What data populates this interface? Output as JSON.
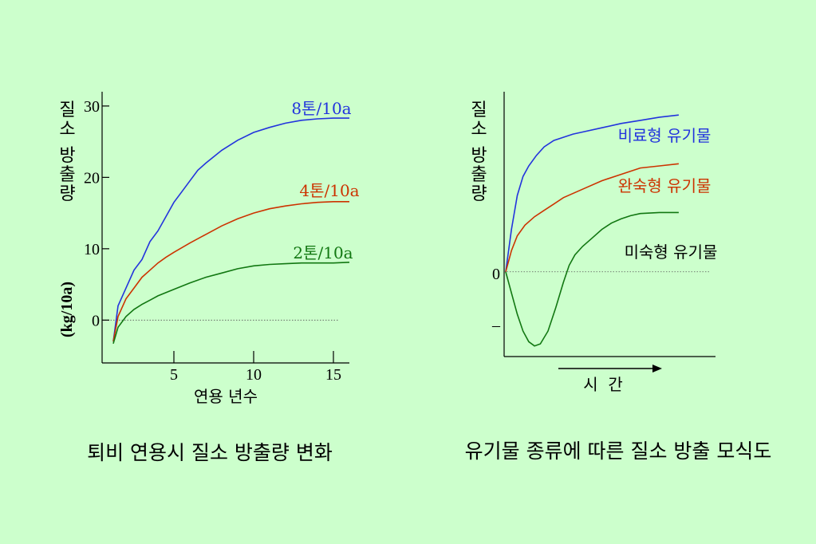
{
  "chart_data": [
    {
      "type": "line",
      "title": "퇴비 연용시 질소 방출량 변화",
      "xlabel": "연용 년수",
      "ylabel_main": "질소 방출량",
      "ylabel_unit": "(kg/10a)",
      "xlim": [
        0.5,
        16
      ],
      "ylim": [
        -6,
        32
      ],
      "xticks": [
        5,
        10,
        15
      ],
      "yticks": [
        0,
        10,
        20,
        30
      ],
      "zero_line": true,
      "series": [
        {
          "name": "8톤/10a",
          "color": "#2233dd",
          "x": [
            1.2,
            1.5,
            2,
            2.5,
            3,
            3.5,
            4,
            4.5,
            5,
            5.5,
            6,
            6.5,
            7,
            8,
            9,
            10,
            11,
            12,
            13,
            14,
            15,
            16
          ],
          "y": [
            -3,
            2,
            4.5,
            7,
            8.5,
            11,
            12.5,
            14.5,
            16.5,
            18,
            19.5,
            21,
            22,
            23.8,
            25.2,
            26.3,
            27,
            27.6,
            28,
            28.2,
            28.3,
            28.3
          ]
        },
        {
          "name": "4톤/10a",
          "color": "#cc3300",
          "x": [
            1.2,
            1.5,
            2,
            2.5,
            3,
            3.5,
            4,
            4.5,
            5,
            6,
            7,
            8,
            9,
            10,
            11,
            12,
            13,
            14,
            15,
            16
          ],
          "y": [
            -3,
            0.5,
            3,
            4.5,
            6,
            7,
            8,
            8.8,
            9.5,
            10.8,
            12,
            13.2,
            14.2,
            15,
            15.6,
            16,
            16.3,
            16.5,
            16.6,
            16.6
          ]
        },
        {
          "name": "2톤/10a",
          "color": "#117711",
          "x": [
            1.2,
            1.5,
            2,
            2.5,
            3,
            3.5,
            4,
            5,
            6,
            7,
            8,
            9,
            10,
            11,
            12,
            13,
            14,
            15,
            16
          ],
          "y": [
            -3.3,
            -1,
            0.5,
            1.5,
            2.2,
            2.8,
            3.4,
            4.3,
            5.2,
            6,
            6.6,
            7.2,
            7.6,
            7.8,
            7.9,
            8,
            8,
            8,
            8.1
          ]
        }
      ]
    },
    {
      "type": "line",
      "title": "유기물 종류에 따른 질소 방출 모식도",
      "xlabel": "시  간",
      "ylabel_main": "질소 방출량",
      "zero_label": "0",
      "neg_tick_label": "–",
      "xlim": [
        0,
        10
      ],
      "ylim": [
        -4,
        8.5
      ],
      "zero_line": true,
      "series": [
        {
          "name": "비료형 유기물",
          "color": "#2233dd",
          "x": [
            0,
            0.3,
            0.6,
            0.9,
            1.2,
            1.6,
            2,
            2.5,
            3,
            3.5,
            4,
            5,
            6,
            7,
            8,
            9
          ],
          "y": [
            0,
            2,
            3.6,
            4.5,
            5,
            5.5,
            5.9,
            6.2,
            6.35,
            6.5,
            6.6,
            6.8,
            7,
            7.15,
            7.3,
            7.4
          ]
        },
        {
          "name": "완숙형 유기물",
          "color": "#cc3300",
          "x": [
            0,
            0.3,
            0.6,
            1,
            1.5,
            2,
            2.5,
            3,
            4,
            5,
            6,
            7,
            8,
            9
          ],
          "y": [
            0,
            1,
            1.7,
            2.2,
            2.6,
            2.9,
            3.2,
            3.5,
            3.9,
            4.3,
            4.6,
            4.9,
            5,
            5.1
          ]
        },
        {
          "name": "미숙형 유기물",
          "color": "#117711",
          "x": [
            0,
            0.3,
            0.6,
            0.9,
            1.2,
            1.5,
            1.8,
            2.2,
            2.6,
            3,
            3.3,
            3.6,
            4,
            4.5,
            5,
            5.5,
            6,
            6.5,
            7,
            8,
            9
          ],
          "y": [
            0,
            -1,
            -2,
            -2.8,
            -3.3,
            -3.5,
            -3.4,
            -2.8,
            -1.7,
            -0.5,
            0.3,
            0.8,
            1.2,
            1.6,
            2,
            2.3,
            2.5,
            2.65,
            2.75,
            2.8,
            2.8
          ]
        }
      ]
    }
  ]
}
